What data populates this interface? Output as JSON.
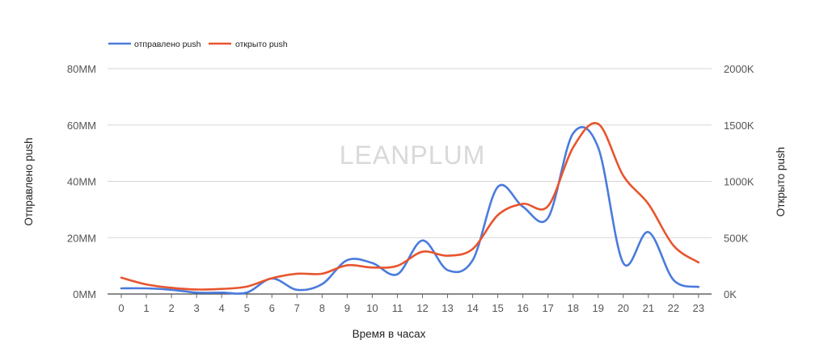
{
  "chart_data": {
    "type": "line",
    "watermark": "LEANPLUM",
    "xlabel": "Время в часах",
    "ylabel_left": "Отправлено push",
    "ylabel_right": "Открыто push",
    "categories": [
      "0",
      "1",
      "2",
      "3",
      "4",
      "5",
      "6",
      "7",
      "8",
      "9",
      "10",
      "11",
      "12",
      "13",
      "14",
      "15",
      "16",
      "17",
      "18",
      "19",
      "20",
      "21",
      "22",
      "23"
    ],
    "left_axis": {
      "min": 0,
      "max": 80,
      "ticks": [
        0,
        20,
        40,
        60,
        80
      ],
      "tick_labels": [
        "0MM",
        "20MM",
        "40MM",
        "60MM",
        "80MM"
      ],
      "unit": "MM"
    },
    "right_axis": {
      "min": 0,
      "max": 2000,
      "ticks": [
        0,
        500,
        1000,
        1500,
        2000
      ],
      "tick_labels": [
        "0K",
        "500K",
        "1000K",
        "1500K",
        "2000K"
      ],
      "unit": "K"
    },
    "grid": true,
    "legend_position": "top-left",
    "series": [
      {
        "name": "отправлено push",
        "axis": "left",
        "color": "#4a7bdc",
        "values": [
          2,
          2,
          1.5,
          0.5,
          0.5,
          0.5,
          5.5,
          1.5,
          3.5,
          12,
          11,
          7,
          19,
          8.5,
          12,
          38,
          31,
          27,
          57,
          52,
          11,
          22,
          5,
          2.5
        ]
      },
      {
        "name": "открыто push",
        "axis": "right",
        "color": "#e8542e",
        "values": [
          145,
          85,
          55,
          40,
          45,
          65,
          140,
          180,
          180,
          255,
          235,
          250,
          375,
          340,
          400,
          700,
          800,
          780,
          1300,
          1510,
          1050,
          800,
          430,
          280
        ]
      }
    ]
  },
  "legend": {
    "items": [
      {
        "label": "отправлено push",
        "color": "#4a7bdc"
      },
      {
        "label": "открыто push",
        "color": "#e8542e"
      }
    ]
  }
}
